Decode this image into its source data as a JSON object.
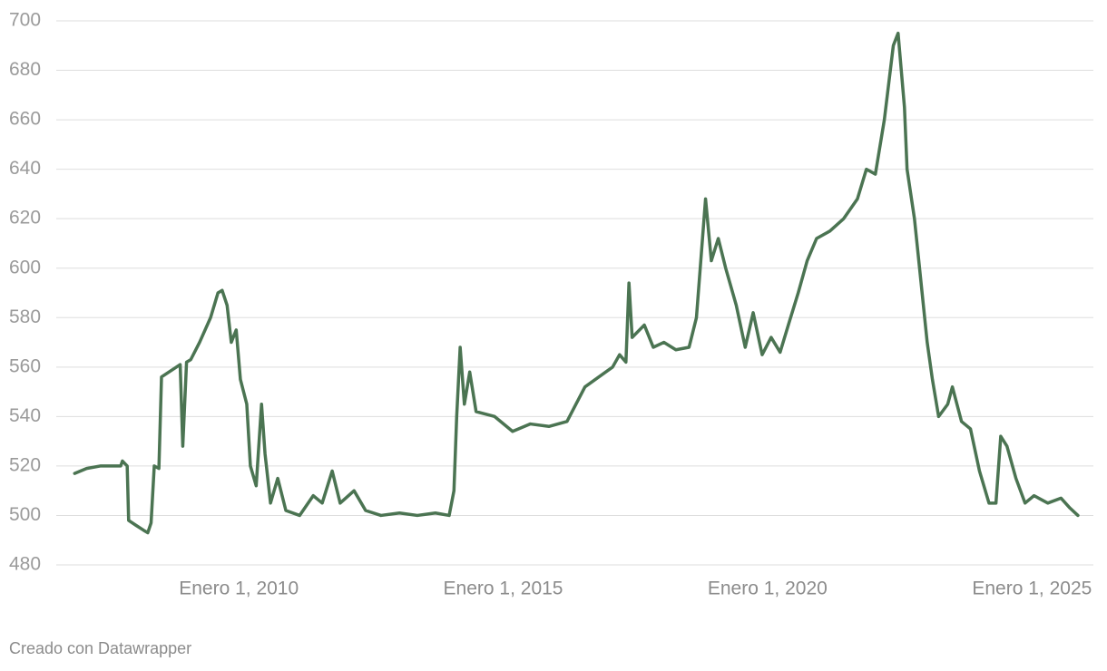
{
  "chart_data": {
    "type": "line",
    "credit": "Creado con Datawrapper",
    "x": [
      "2006-11-24",
      "2007-02-15",
      "2007-05-20",
      "2007-10-08",
      "2007-10-20",
      "2007-11-22",
      "2007-12-02",
      "2008-01-22",
      "2008-03-15",
      "2008-04-12",
      "2008-05-05",
      "2008-05-27",
      "2008-06-28",
      "2008-07-16",
      "2008-10-01",
      "2008-11-22",
      "2008-12-10",
      "2009-01-05",
      "2009-02-03",
      "2009-04-05",
      "2009-06-20",
      "2009-08-10",
      "2009-09-08",
      "2009-10-12",
      "2009-11-10",
      "2009-12-14",
      "2010-01-12",
      "2010-02-25",
      "2010-03-22",
      "2010-05-01",
      "2010-06-07",
      "2010-07-01",
      "2010-08-08",
      "2010-09-27",
      "2010-11-22",
      "2011-02-25",
      "2011-05-30",
      "2011-07-31",
      "2011-10-08",
      "2011-12-02",
      "2012-03-07",
      "2012-05-26",
      "2012-09-09",
      "2013-01-15",
      "2013-05-18",
      "2013-09-20",
      "2013-12-24",
      "2014-01-26",
      "2014-02-14",
      "2014-03-10",
      "2014-04-08",
      "2014-05-15",
      "2014-06-28",
      "2014-11-03",
      "2015-03-07",
      "2015-07-08",
      "2015-11-13",
      "2016-03-17",
      "2016-05-18",
      "2016-07-19",
      "2016-10-23",
      "2017-01-26",
      "2017-03-15",
      "2017-04-28",
      "2017-05-19",
      "2017-06-10",
      "2017-09-02",
      "2017-11-03",
      "2018-01-15",
      "2018-04-08",
      "2018-07-08",
      "2018-08-28",
      "2018-10-30",
      "2018-12-09",
      "2019-01-26",
      "2019-03-18",
      "2019-05-30",
      "2019-07-31",
      "2019-09-24",
      "2019-11-25",
      "2020-01-26",
      "2020-03-28",
      "2020-05-29",
      "2020-07-31",
      "2020-10-01",
      "2020-12-05",
      "2021-03-07",
      "2021-06-10",
      "2021-09-13",
      "2021-11-14",
      "2022-01-15",
      "2022-03-18",
      "2022-05-19",
      "2022-06-21",
      "2022-08-04",
      "2022-08-22",
      "2022-10-12",
      "2022-11-25",
      "2023-01-08",
      "2023-02-13",
      "2023-03-28",
      "2023-05-30",
      "2023-07-01",
      "2023-09-02",
      "2023-11-03",
      "2024-01-04",
      "2024-03-10",
      "2024-04-27",
      "2024-05-30",
      "2024-07-12",
      "2024-09-12",
      "2024-11-14",
      "2025-01-15",
      "2025-04-20",
      "2025-07-20",
      "2025-09-20",
      "2025-11-14"
    ],
    "series": [
      {
        "color": "#4b7452",
        "values": [
          517,
          519,
          520,
          520,
          522,
          520,
          498,
          496,
          494,
          493,
          497,
          520,
          519,
          556,
          559,
          561,
          528,
          562,
          563,
          570,
          580,
          590,
          591,
          585,
          570,
          575,
          555,
          545,
          520,
          512,
          545,
          525,
          505,
          515,
          502,
          500,
          508,
          505,
          518,
          505,
          510,
          502,
          500,
          501,
          500,
          501,
          500,
          510,
          540,
          568,
          545,
          558,
          542,
          540,
          534,
          537,
          536,
          538,
          545,
          552,
          556,
          560,
          565,
          562,
          594,
          572,
          577,
          568,
          570,
          567,
          568,
          580,
          628,
          603,
          612,
          600,
          585,
          568,
          582,
          565,
          572,
          566,
          578,
          590,
          603,
          612,
          615,
          620,
          628,
          640,
          638,
          660,
          690,
          695,
          665,
          640,
          620,
          595,
          570,
          555,
          540,
          545,
          552,
          538,
          535,
          518,
          505,
          505,
          532,
          528,
          515,
          505,
          508,
          505,
          507,
          503,
          500
        ]
      }
    ],
    "xlim": [
      "2006-07-20",
      "2026-03-01"
    ],
    "xticks": [
      {
        "value": "2010-01-01",
        "label": "Enero 1, 2010"
      },
      {
        "value": "2015-01-01",
        "label": "Enero 1, 2015"
      },
      {
        "value": "2020-01-01",
        "label": "Enero 1, 2020"
      },
      {
        "value": "2025-01-01",
        "label": "Enero 1, 2025"
      }
    ],
    "ylim": [
      480,
      700
    ],
    "yticks": [
      480,
      500,
      520,
      540,
      560,
      580,
      600,
      620,
      640,
      660,
      680,
      700
    ],
    "grid": true
  }
}
